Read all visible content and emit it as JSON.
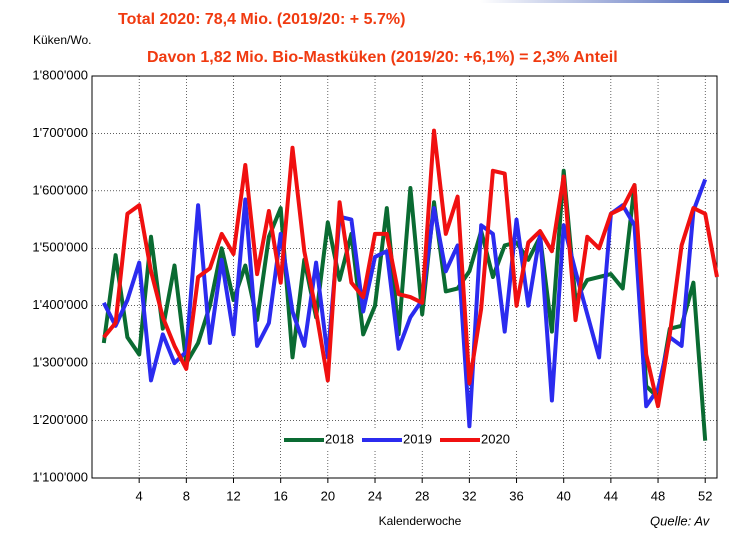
{
  "chart_data": {
    "type": "line",
    "title": "Total 2020: 78,4 Mio. (2019/20: + 5.7%)",
    "subtitle": "Davon 1,82 Mio. Bio-Mastküken (2019/20: +6,1%) = 2,3% Anteil",
    "y_label": "Küken/Wo.",
    "x_label": "Kalenderwoche",
    "source": "Quelle: Av",
    "x": [
      1,
      2,
      3,
      4,
      5,
      6,
      7,
      8,
      9,
      10,
      11,
      12,
      13,
      14,
      15,
      16,
      17,
      18,
      19,
      20,
      21,
      22,
      23,
      24,
      25,
      26,
      27,
      28,
      29,
      30,
      31,
      32,
      33,
      34,
      35,
      36,
      37,
      38,
      39,
      40,
      41,
      42,
      43,
      44,
      45,
      46,
      47,
      48,
      49,
      50,
      51,
      52,
      53
    ],
    "xlim": [
      0,
      53
    ],
    "xticks": [
      4,
      8,
      12,
      16,
      20,
      24,
      28,
      32,
      36,
      40,
      44,
      48,
      52
    ],
    "ylim": [
      1100000,
      1800000
    ],
    "yticks": [
      {
        "value": 1100000,
        "label": "1'100'000"
      },
      {
        "value": 1200000,
        "label": "1'200'000"
      },
      {
        "value": 1300000,
        "label": "1'300'000"
      },
      {
        "value": 1400000,
        "label": "1'400'000"
      },
      {
        "value": 1500000,
        "label": "1'500'000"
      },
      {
        "value": 1600000,
        "label": "1'600'000"
      },
      {
        "value": 1700000,
        "label": "1'700'000"
      },
      {
        "value": 1800000,
        "label": "1'800'000"
      }
    ],
    "grid": true,
    "legend": "bottom",
    "series": [
      {
        "name": "2018",
        "color": "#0a6b32",
        "values": [
          1335000,
          1488000,
          1345000,
          1315000,
          1520000,
          1360000,
          1470000,
          1300000,
          1335000,
          1400000,
          1500000,
          1410000,
          1470000,
          1375000,
          1520000,
          1570000,
          1310000,
          1480000,
          1380000,
          1545000,
          1445000,
          1525000,
          1350000,
          1400000,
          1570000,
          1350000,
          1605000,
          1385000,
          1580000,
          1425000,
          1430000,
          1460000,
          1530000,
          1450000,
          1505000,
          1510000,
          1480000,
          1520000,
          1355000,
          1635000,
          1410000,
          1445000,
          1450000,
          1455000,
          1430000,
          1610000,
          1260000,
          1240000,
          1360000,
          1365000,
          1440000,
          1165000,
          null
        ]
      },
      {
        "name": "2019",
        "color": "#2b2bef",
        "values": [
          1405000,
          1365000,
          1410000,
          1475000,
          1270000,
          1350000,
          1300000,
          1320000,
          1575000,
          1335000,
          1480000,
          1350000,
          1585000,
          1330000,
          1370000,
          1525000,
          1390000,
          1330000,
          1475000,
          1310000,
          1555000,
          1550000,
          1390000,
          1485000,
          1495000,
          1325000,
          1380000,
          1410000,
          1570000,
          1460000,
          1505000,
          1190000,
          1540000,
          1525000,
          1355000,
          1550000,
          1400000,
          1525000,
          1235000,
          1540000,
          1460000,
          1385000,
          1310000,
          1560000,
          1575000,
          1540000,
          1225000,
          1255000,
          1345000,
          1330000,
          1565000,
          1620000,
          null
        ]
      },
      {
        "name": "2020",
        "color": "#f01010",
        "values": [
          1345000,
          1370000,
          1560000,
          1575000,
          1460000,
          1380000,
          1330000,
          1290000,
          1450000,
          1465000,
          1525000,
          1490000,
          1645000,
          1455000,
          1565000,
          1440000,
          1675000,
          1495000,
          1390000,
          1270000,
          1580000,
          1440000,
          1415000,
          1525000,
          1525000,
          1420000,
          1415000,
          1405000,
          1705000,
          1525000,
          1590000,
          1265000,
          1395000,
          1635000,
          1630000,
          1400000,
          1510000,
          1530000,
          1495000,
          1625000,
          1375000,
          1520000,
          1500000,
          1560000,
          1570000,
          1610000,
          1315000,
          1225000,
          1350000,
          1505000,
          1570000,
          1560000,
          1450000
        ]
      }
    ]
  }
}
